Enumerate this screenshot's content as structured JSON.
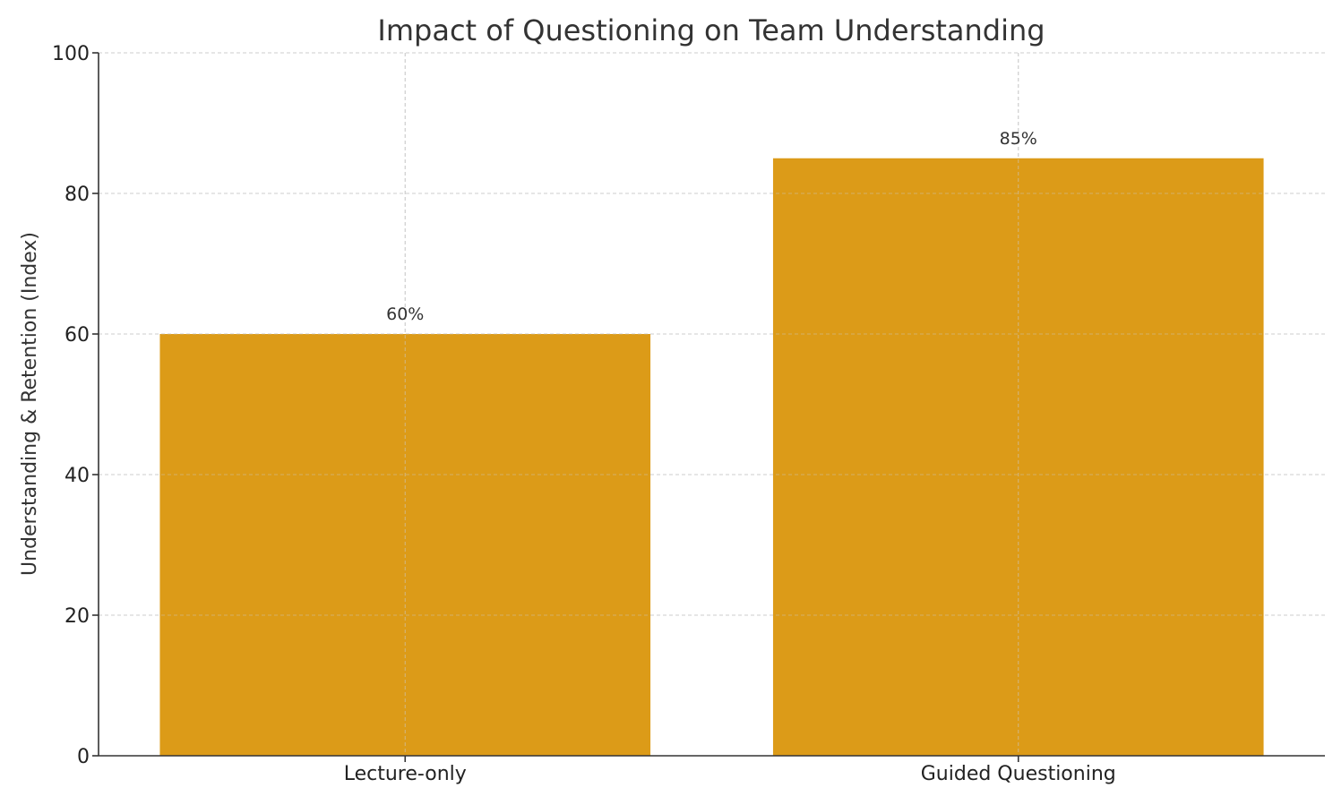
{
  "chart_data": {
    "type": "bar",
    "title": "Impact of Questioning on Team Understanding",
    "xlabel": "",
    "ylabel": "Understanding & Retention (Index)",
    "categories": [
      "Lecture-only",
      "Guided Questioning"
    ],
    "values": [
      60,
      85
    ],
    "data_labels": [
      "60%",
      "85%"
    ],
    "ylim": [
      0,
      100
    ],
    "yticks": [
      0,
      20,
      40,
      60,
      80,
      100
    ],
    "ytick_labels": [
      "0",
      "20",
      "40",
      "60",
      "80",
      "100"
    ],
    "grid": true,
    "bar_color": "#DC9B18"
  }
}
